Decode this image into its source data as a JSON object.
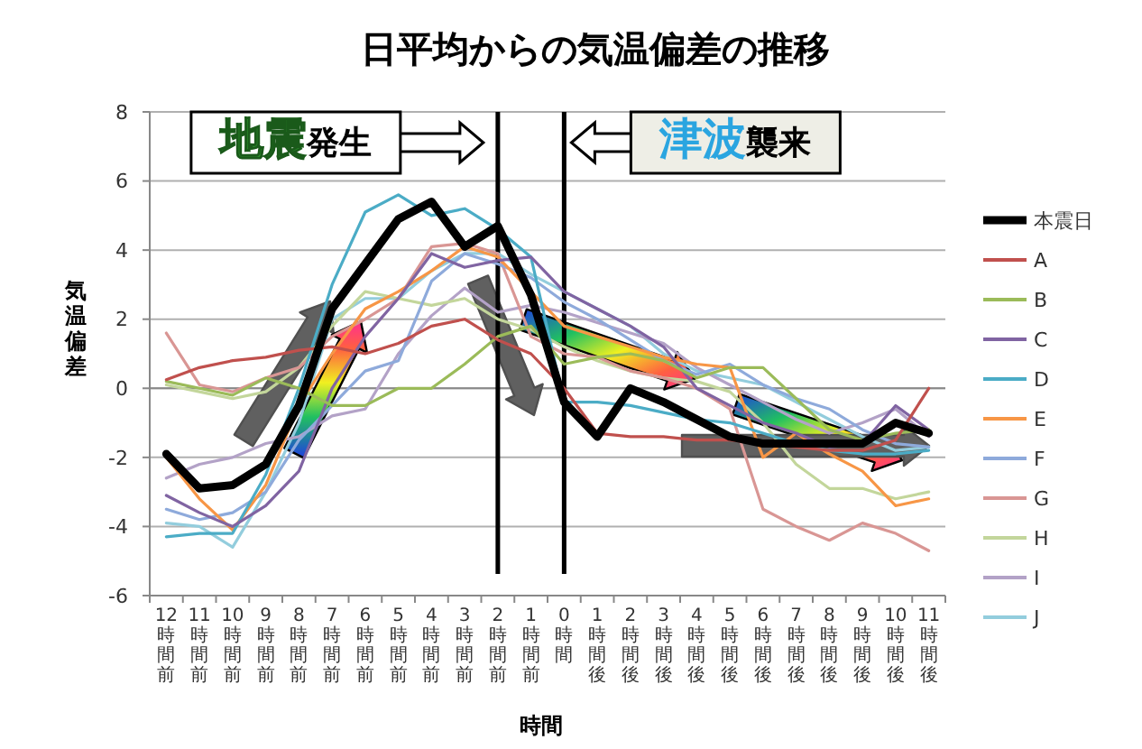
{
  "chart_data": {
    "type": "line",
    "title": "日平均からの気温偏差の推移",
    "xlabel": "時間",
    "ylabel": "気温偏差",
    "categories": [
      "12時間前",
      "11時間前",
      "10時間前",
      "9時間前",
      "8時間前",
      "7時間前",
      "6時間前",
      "5時間前",
      "4時間前",
      "3時間前",
      "2時間前",
      "1時間前",
      "0時間",
      "1時間後",
      "2時間後",
      "3時間後",
      "4時間後",
      "5時間後",
      "6時間後",
      "7時間後",
      "8時間後",
      "9時間後",
      "10時間後",
      "11時間後"
    ],
    "ylim": [
      -6,
      8
    ],
    "yticks": [
      -6,
      -4,
      -2,
      0,
      2,
      4,
      6,
      8
    ],
    "grid": "y",
    "legend": "right",
    "marker": "none",
    "line_style": "solid",
    "ref_lines": [
      {
        "axis": "x",
        "value": "2時間前",
        "label": "地震発生",
        "color": "#000000"
      },
      {
        "axis": "x",
        "value": "0時間",
        "label": "津波襲来",
        "color": "#000000"
      }
    ],
    "series": [
      {
        "name": "本震日",
        "color": "#000000",
        "values": [
          -1.9,
          -2.9,
          -2.8,
          -2.2,
          -0.5,
          2.3,
          3.6,
          4.9,
          5.4,
          4.1,
          4.7,
          2.7,
          -0.4,
          -1.4,
          0,
          -0.4,
          -0.9,
          -1.4,
          -1.6,
          -1.6,
          -1.6,
          -1.6,
          -1.0,
          -1.3
        ]
      },
      {
        "name": "A",
        "color": "#c0504d",
        "values": [
          0.25,
          0.6,
          0.8,
          0.9,
          1.1,
          1.2,
          1.0,
          1.3,
          1.8,
          2.0,
          1.4,
          1.0,
          0,
          -1.3,
          -1.4,
          -1.4,
          -1.5,
          -1.5,
          -1.6,
          -1.7,
          -1.8,
          -1.8,
          -1.5,
          0
        ]
      },
      {
        "name": "B",
        "color": "#9bbb59",
        "values": [
          0.2,
          0,
          -0.2,
          0.3,
          0,
          -0.5,
          -0.5,
          0,
          0,
          0.7,
          1.5,
          1.8,
          0.7,
          0.9,
          1.0,
          0.8,
          0.3,
          0.6,
          0.6,
          -0.3,
          -1.2,
          -1.5,
          -1.3,
          -1.2
        ]
      },
      {
        "name": "C",
        "color": "#8064a2",
        "values": [
          -3.1,
          -3.6,
          -4.0,
          -3.4,
          -2.4,
          0,
          1.5,
          2.6,
          3.9,
          3.5,
          3.7,
          3.8,
          2.8,
          2.3,
          1.8,
          1.2,
          0,
          -0.5,
          -1.0,
          -1.3,
          -1.7,
          -1.6,
          -0.5,
          -1.2
        ]
      },
      {
        "name": "D",
        "color": "#4bacc6",
        "values": [
          -4.3,
          -4.2,
          -4.2,
          -2.5,
          0,
          3.0,
          5.1,
          5.6,
          5.0,
          5.2,
          4.6,
          3.8,
          -0.4,
          -0.4,
          -0.5,
          -0.7,
          -0.9,
          -1.0,
          -1.3,
          -1.6,
          -1.8,
          -1.9,
          -1.9,
          -1.8
        ]
      },
      {
        "name": "E",
        "color": "#f79646",
        "values": [
          -2.0,
          -3.2,
          -4.1,
          -2.8,
          -0.5,
          1.0,
          2.3,
          2.8,
          3.4,
          4.1,
          3.8,
          2.8,
          1.8,
          1.5,
          1.2,
          0.9,
          0.7,
          0.6,
          -2.0,
          -1.3,
          -1.9,
          -2.4,
          -3.4,
          -3.2
        ]
      },
      {
        "name": "F",
        "color": "#8eaadb",
        "values": [
          -3.5,
          -3.8,
          -3.6,
          -3.0,
          -1.5,
          -0.5,
          0.5,
          0.8,
          3.1,
          3.9,
          3.6,
          3.2,
          2.5,
          2.0,
          1.4,
          0.8,
          0.4,
          0.7,
          0.1,
          -0.3,
          -0.6,
          -1.2,
          -1.6,
          -1.7
        ]
      },
      {
        "name": "G",
        "color": "#d99694",
        "values": [
          1.6,
          0.1,
          -0.1,
          0.3,
          0.6,
          1.5,
          2.0,
          2.6,
          4.1,
          4.2,
          3.9,
          1.5,
          1.0,
          0.9,
          0.5,
          0.3,
          0,
          -0.6,
          -3.5,
          -4.0,
          -4.4,
          -3.9,
          -4.2,
          -4.7
        ]
      },
      {
        "name": "H",
        "color": "#c3d69b",
        "values": [
          0.1,
          -0.1,
          -0.3,
          -0.1,
          0.6,
          1.8,
          2.8,
          2.6,
          2.4,
          2.6,
          2.0,
          1.7,
          1.2,
          0.8,
          0.5,
          0.3,
          0.2,
          -0.1,
          -1.0,
          -2.2,
          -2.9,
          -2.9,
          -3.2,
          -3.0
        ]
      },
      {
        "name": "I",
        "color": "#b3a2c7",
        "values": [
          -2.6,
          -2.2,
          -2.0,
          -1.6,
          -1.4,
          -0.8,
          -0.6,
          1.0,
          2.1,
          2.9,
          2.2,
          2.4,
          2.2,
          1.9,
          1.6,
          1.3,
          0.6,
          0.1,
          -0.4,
          -0.9,
          -1.3,
          -1.0,
          -0.6,
          -1.4
        ]
      },
      {
        "name": "J",
        "color": "#93cddd",
        "values": [
          -3.9,
          -4.0,
          -4.6,
          -3.0,
          -1.0,
          2.0,
          2.6,
          2.6,
          3.4,
          3.9,
          3.9,
          3.3,
          2.8,
          2.3,
          1.8,
          1.0,
          0.5,
          0.3,
          0.1,
          -0.4,
          -0.9,
          -1.4,
          -1.8,
          -1.7
        ]
      }
    ]
  }
}
